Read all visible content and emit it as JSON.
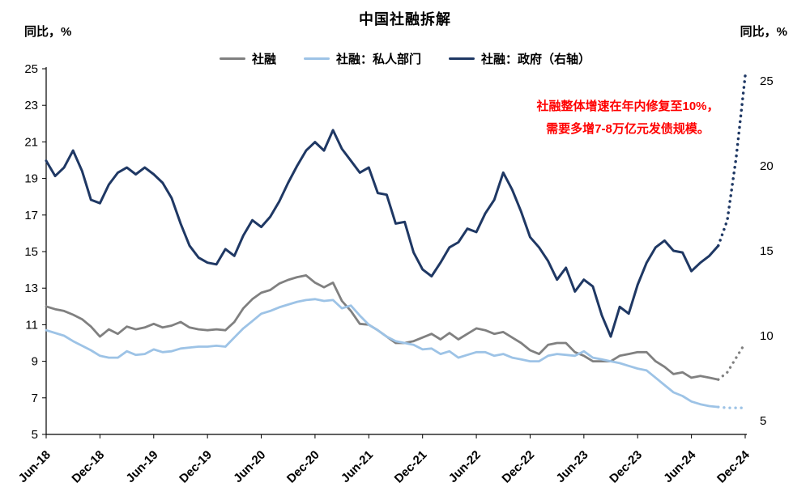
{
  "title": "中国社融拆解",
  "left_axis_unit": "同比，%",
  "right_axis_unit": "同比，%",
  "legend": {
    "items": [
      {
        "label": "社融",
        "color": "#808080"
      },
      {
        "label": "社融：私人部门",
        "color": "#9DC3E6"
      },
      {
        "label": "社融：政府（右轴）",
        "color": "#1F3864"
      }
    ]
  },
  "annotation": {
    "lines": [
      "社融整体增速在年内修复至10%，",
      "需要多增7-8万亿元发债规模。"
    ],
    "color": "#FF0000"
  },
  "chart_data": {
    "type": "line",
    "title": "中国社融拆解",
    "x_unit": "month",
    "n_points": 79,
    "x_tick_every": 6,
    "x_tick_labels": [
      "Jun-18",
      "Dec-18",
      "Jun-19",
      "Dec-19",
      "Jun-20",
      "Dec-20",
      "Jun-21",
      "Dec-21",
      "Jun-22",
      "Dec-22",
      "Jun-23",
      "Dec-23",
      "Jun-24",
      "Dec-24"
    ],
    "left_axis": {
      "label": "同比，%",
      "min": 5,
      "max": 25,
      "ticks": [
        5,
        7,
        9,
        11,
        13,
        15,
        17,
        19,
        21,
        23,
        25
      ]
    },
    "right_axis": {
      "label": "同比，%",
      "min": 5,
      "max": 25,
      "ticks": [
        5,
        10,
        15,
        20,
        25
      ]
    },
    "grid": false,
    "legend_position": "top",
    "series": [
      {
        "name": "社融",
        "axis": "left",
        "color": "#808080",
        "width": 2.8,
        "values": [
          12.0,
          11.85,
          11.75,
          11.55,
          11.3,
          10.9,
          10.35,
          10.75,
          10.5,
          10.9,
          10.75,
          10.85,
          11.05,
          10.85,
          10.95,
          11.15,
          10.85,
          10.75,
          10.7,
          10.75,
          10.7,
          11.15,
          11.9,
          12.4,
          12.75,
          12.9,
          13.25,
          13.45,
          13.6,
          13.7,
          13.3,
          13.05,
          13.3,
          12.3,
          11.75,
          11.05,
          11.0,
          10.7,
          10.35,
          10.0,
          10.0,
          10.1,
          10.3,
          10.5,
          10.2,
          10.55,
          10.2,
          10.5,
          10.8,
          10.7,
          10.5,
          10.6,
          10.3,
          10.0,
          9.6,
          9.4,
          9.9,
          10.0,
          10.0,
          9.5,
          9.3,
          9.0,
          9.0,
          9.0,
          9.3,
          9.4,
          9.5,
          9.5,
          9.0,
          8.7,
          8.3,
          8.4,
          8.1,
          8.2,
          8.1,
          8.0
        ],
        "forecast": {
          "start": 75,
          "values": [
            8.0,
            8.4,
            9.2,
            10.0
          ]
        }
      },
      {
        "name": "社融：私人部门",
        "axis": "left",
        "color": "#9DC3E6",
        "width": 2.8,
        "values": [
          10.7,
          10.55,
          10.4,
          10.1,
          9.85,
          9.6,
          9.3,
          9.2,
          9.2,
          9.55,
          9.35,
          9.4,
          9.65,
          9.5,
          9.55,
          9.7,
          9.75,
          9.8,
          9.8,
          9.85,
          9.8,
          10.3,
          10.8,
          11.2,
          11.6,
          11.75,
          11.95,
          12.1,
          12.25,
          12.35,
          12.4,
          12.3,
          12.35,
          11.9,
          12.05,
          11.5,
          11.0,
          10.7,
          10.35,
          10.1,
          10.0,
          9.9,
          9.65,
          9.7,
          9.4,
          9.55,
          9.2,
          9.35,
          9.5,
          9.5,
          9.3,
          9.4,
          9.2,
          9.1,
          9.0,
          9.0,
          9.3,
          9.4,
          9.35,
          9.3,
          9.55,
          9.2,
          9.1,
          9.0,
          8.9,
          8.75,
          8.6,
          8.5,
          8.1,
          7.7,
          7.3,
          7.1,
          6.8,
          6.65,
          6.55,
          6.5
        ],
        "forecast": {
          "start": 75,
          "values": [
            6.5,
            6.45,
            6.45,
            6.45
          ]
        }
      },
      {
        "name": "社融：政府（右轴）",
        "axis": "right",
        "color": "#1F3864",
        "width": 3.0,
        "values": [
          20.3,
          19.4,
          19.9,
          20.9,
          19.7,
          18.0,
          17.8,
          18.9,
          19.6,
          19.9,
          19.5,
          19.9,
          19.5,
          19.0,
          18.1,
          16.6,
          15.3,
          14.6,
          14.3,
          14.2,
          15.1,
          14.7,
          15.9,
          16.8,
          16.4,
          17.0,
          17.9,
          19.0,
          20.0,
          20.9,
          21.4,
          20.9,
          22.1,
          21.0,
          20.3,
          19.6,
          19.9,
          18.4,
          18.3,
          16.6,
          16.7,
          14.9,
          13.9,
          13.5,
          14.3,
          15.2,
          15.5,
          16.3,
          16.1,
          17.2,
          18.0,
          19.6,
          18.6,
          17.3,
          15.8,
          15.2,
          14.4,
          13.3,
          14.0,
          12.6,
          13.3,
          12.9,
          11.2,
          9.95,
          11.7,
          11.3,
          13.0,
          14.3,
          15.2,
          15.6,
          15.0,
          14.9,
          13.8,
          14.3,
          14.7,
          15.3
        ],
        "forecast": {
          "start": 75,
          "values": [
            15.3,
            16.8,
            20.5,
            25.3
          ]
        }
      }
    ]
  }
}
